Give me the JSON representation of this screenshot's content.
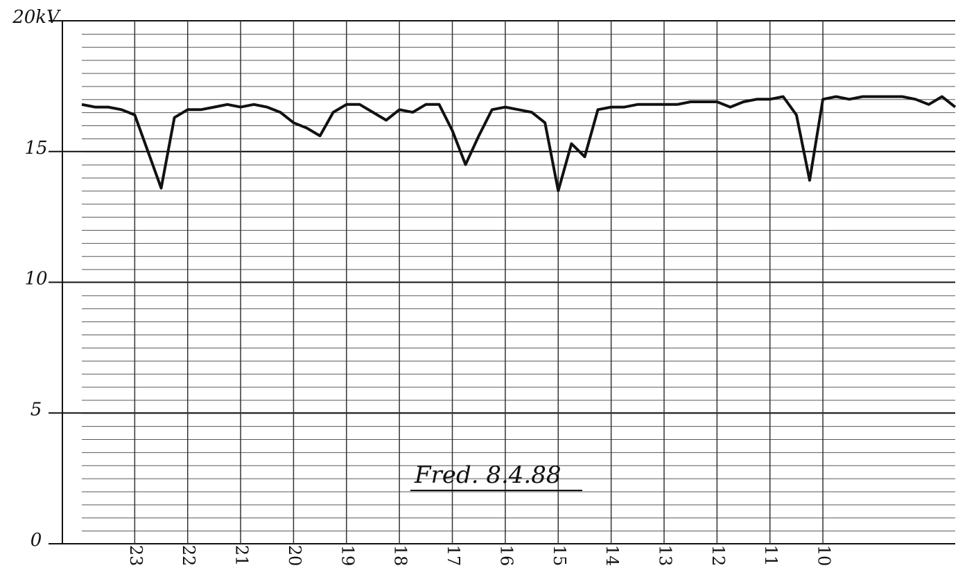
{
  "chart_data": {
    "type": "line",
    "annotation": "Fred. 8.4.88",
    "x": [
      24,
      23.75,
      23.5,
      23.25,
      23,
      22.75,
      22.5,
      22.25,
      22,
      21.75,
      21.5,
      21.25,
      21,
      20.75,
      20.5,
      20.25,
      20,
      19.75,
      19.5,
      19.25,
      19,
      18.75,
      18.5,
      18.25,
      18,
      17.75,
      17.5,
      17.25,
      17,
      16.75,
      16.5,
      16.25,
      16,
      15.75,
      15.5,
      15.25,
      15,
      14.75,
      14.5,
      14.25,
      14,
      13.75,
      13.5,
      13.25,
      13,
      12.75,
      12.5,
      12.25,
      12,
      11.75,
      11.5,
      11.25,
      11,
      10.75,
      10.5,
      10.25,
      10,
      9.75,
      9.5,
      9.25,
      9,
      8.75,
      8.5,
      8.25,
      8,
      7.75,
      7.5
    ],
    "values": [
      16.8,
      16.7,
      16.7,
      16.6,
      16.4,
      15.0,
      13.6,
      16.3,
      16.6,
      16.6,
      16.7,
      16.8,
      16.7,
      16.8,
      16.7,
      16.5,
      16.1,
      15.9,
      15.6,
      16.5,
      16.8,
      16.8,
      16.5,
      16.2,
      16.6,
      16.5,
      16.8,
      16.8,
      15.8,
      14.5,
      15.6,
      16.6,
      16.7,
      16.6,
      16.5,
      16.1,
      13.5,
      15.3,
      14.8,
      16.6,
      16.7,
      16.7,
      16.8,
      16.8,
      16.8,
      16.8,
      16.9,
      16.9,
      16.9,
      16.7,
      16.9,
      17.0,
      17.0,
      17.1,
      16.4,
      13.9,
      17.0,
      17.1,
      17.0,
      17.1,
      17.1,
      17.1,
      17.1,
      17.0,
      16.8,
      17.1,
      16.7
    ],
    "color": "#111111",
    "xlim": [
      24,
      7.5
    ],
    "xticks": [
      23,
      22,
      21,
      20,
      19,
      18,
      17,
      16,
      15,
      14,
      13,
      12,
      11,
      10
    ],
    "ylim": [
      0,
      20
    ],
    "yticks": [
      0,
      5,
      10,
      15,
      {
        "value": 20,
        "label": "20kV"
      }
    ],
    "grid": true
  }
}
